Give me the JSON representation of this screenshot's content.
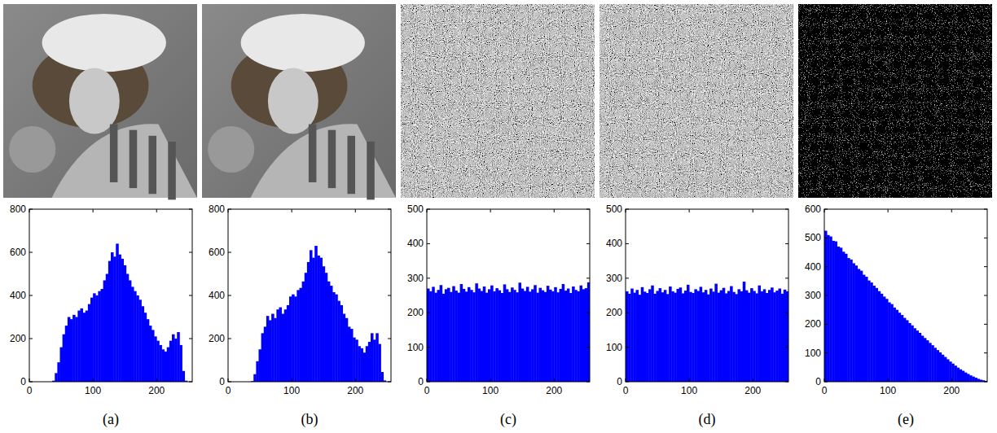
{
  "chart_data": [
    {
      "type": "histogram",
      "title": "(a)",
      "color": "#0000ff",
      "grid": false,
      "bins": [
        0,
        4,
        8,
        12,
        16,
        20,
        24,
        28,
        32,
        36,
        40,
        44,
        48,
        52,
        56,
        60,
        64,
        68,
        72,
        76,
        80,
        84,
        88,
        92,
        96,
        100,
        104,
        108,
        112,
        116,
        120,
        124,
        128,
        132,
        136,
        140,
        144,
        148,
        152,
        156,
        160,
        164,
        168,
        172,
        176,
        180,
        184,
        188,
        192,
        196,
        200,
        204,
        208,
        212,
        216,
        220,
        224,
        228,
        232,
        236,
        240,
        244,
        248,
        252,
        256
      ],
      "values": [
        0,
        0,
        0,
        0,
        0,
        0,
        0,
        0,
        0,
        5,
        40,
        90,
        160,
        220,
        260,
        300,
        290,
        310,
        300,
        330,
        340,
        320,
        330,
        360,
        390,
        410,
        400,
        420,
        430,
        470,
        500,
        560,
        600,
        580,
        640,
        590,
        570,
        540,
        500,
        470,
        440,
        420,
        400,
        380,
        350,
        320,
        290,
        260,
        240,
        210,
        190,
        170,
        150,
        140,
        160,
        190,
        220,
        200,
        230,
        170,
        50,
        5,
        0,
        0
      ],
      "xlim": [
        0,
        256
      ],
      "xticks": [
        0,
        100,
        200
      ],
      "ylim": [
        0,
        800
      ],
      "yticks": [
        0,
        200,
        400,
        600,
        800
      ]
    },
    {
      "type": "histogram",
      "title": "(b)",
      "color": "#0000ff",
      "grid": false,
      "bins": [
        0,
        4,
        8,
        12,
        16,
        20,
        24,
        28,
        32,
        36,
        40,
        44,
        48,
        52,
        56,
        60,
        64,
        68,
        72,
        76,
        80,
        84,
        88,
        92,
        96,
        100,
        104,
        108,
        112,
        116,
        120,
        124,
        128,
        132,
        136,
        140,
        144,
        148,
        152,
        156,
        160,
        164,
        168,
        172,
        176,
        180,
        184,
        188,
        192,
        196,
        200,
        204,
        208,
        212,
        216,
        220,
        224,
        228,
        232,
        236,
        240,
        244,
        248,
        252,
        256
      ],
      "values": [
        0,
        0,
        0,
        0,
        0,
        0,
        0,
        0,
        0,
        3,
        35,
        95,
        150,
        225,
        255,
        305,
        285,
        315,
        295,
        335,
        345,
        315,
        335,
        355,
        395,
        405,
        395,
        425,
        435,
        465,
        505,
        555,
        610,
        575,
        630,
        585,
        575,
        535,
        505,
        465,
        445,
        415,
        405,
        375,
        355,
        315,
        295,
        255,
        245,
        205,
        195,
        165,
        155,
        135,
        165,
        185,
        225,
        195,
        225,
        175,
        45,
        6,
        0,
        0
      ],
      "xlim": [
        0,
        256
      ],
      "xticks": [
        0,
        100,
        200
      ],
      "ylim": [
        0,
        800
      ],
      "yticks": [
        0,
        200,
        400,
        600,
        800
      ]
    },
    {
      "type": "histogram",
      "title": "(c)",
      "color": "#0000ff",
      "grid": false,
      "bins": [
        0,
        4,
        8,
        12,
        16,
        20,
        24,
        28,
        32,
        36,
        40,
        44,
        48,
        52,
        56,
        60,
        64,
        68,
        72,
        76,
        80,
        84,
        88,
        92,
        96,
        100,
        104,
        108,
        112,
        116,
        120,
        124,
        128,
        132,
        136,
        140,
        144,
        148,
        152,
        156,
        160,
        164,
        168,
        172,
        176,
        180,
        184,
        188,
        192,
        196,
        200,
        204,
        208,
        212,
        216,
        220,
        224,
        228,
        232,
        236,
        240,
        244,
        248,
        252,
        256
      ],
      "values": [
        270,
        262,
        275,
        258,
        266,
        280,
        255,
        268,
        272,
        260,
        277,
        264,
        258,
        283,
        269,
        261,
        274,
        266,
        259,
        285,
        270,
        263,
        276,
        258,
        268,
        279,
        262,
        271,
        265,
        257,
        282,
        268,
        260,
        273,
        266,
        259,
        287,
        270,
        263,
        275,
        261,
        268,
        280,
        258,
        272,
        265,
        260,
        278,
        267,
        262,
        274,
        259,
        269,
        283,
        264,
        270,
        257,
        276,
        266,
        262,
        279,
        268,
        271,
        288
      ],
      "xlim": [
        0,
        256
      ],
      "xticks": [
        0,
        100,
        200
      ],
      "ylim": [
        0,
        500
      ],
      "yticks": [
        0,
        100,
        200,
        300,
        400,
        500
      ]
    },
    {
      "type": "histogram",
      "title": "(d)",
      "color": "#0000ff",
      "grid": false,
      "bins": [
        0,
        4,
        8,
        12,
        16,
        20,
        24,
        28,
        32,
        36,
        40,
        44,
        48,
        52,
        56,
        60,
        64,
        68,
        72,
        76,
        80,
        84,
        88,
        92,
        96,
        100,
        104,
        108,
        112,
        116,
        120,
        124,
        128,
        132,
        136,
        140,
        144,
        148,
        152,
        156,
        160,
        164,
        168,
        172,
        176,
        180,
        184,
        188,
        192,
        196,
        200,
        204,
        208,
        212,
        216,
        220,
        224,
        228,
        232,
        236,
        240,
        244,
        248,
        252,
        256
      ],
      "values": [
        262,
        255,
        270,
        258,
        266,
        252,
        274,
        261,
        257,
        268,
        279,
        255,
        263,
        271,
        259,
        266,
        254,
        276,
        262,
        258,
        269,
        273,
        256,
        264,
        281,
        260,
        257,
        268,
        263,
        275,
        259,
        266,
        253,
        270,
        261,
        284,
        258,
        265,
        272,
        256,
        263,
        277,
        260,
        254,
        268,
        262,
        290,
        265,
        258,
        271,
        263,
        256,
        279,
        262,
        268,
        257,
        266,
        273,
        259,
        264,
        270,
        255,
        267,
        262
      ],
      "xlim": [
        0,
        256
      ],
      "xticks": [
        0,
        100,
        200
      ],
      "ylim": [
        0,
        500
      ],
      "yticks": [
        0,
        100,
        200,
        300,
        400,
        500
      ]
    },
    {
      "type": "histogram",
      "title": "(e)",
      "color": "#0000ff",
      "grid": false,
      "bins": [
        0,
        4,
        8,
        12,
        16,
        20,
        24,
        28,
        32,
        36,
        40,
        44,
        48,
        52,
        56,
        60,
        64,
        68,
        72,
        76,
        80,
        84,
        88,
        92,
        96,
        100,
        104,
        108,
        112,
        116,
        120,
        124,
        128,
        132,
        136,
        140,
        144,
        148,
        152,
        156,
        160,
        164,
        168,
        172,
        176,
        180,
        184,
        188,
        192,
        196,
        200,
        204,
        208,
        212,
        216,
        220,
        224,
        228,
        232,
        236,
        240,
        244,
        248,
        252,
        256
      ],
      "values": [
        525,
        510,
        505,
        490,
        488,
        470,
        466,
        452,
        445,
        430,
        425,
        412,
        404,
        392,
        386,
        372,
        365,
        352,
        345,
        334,
        326,
        315,
        306,
        296,
        288,
        276,
        270,
        258,
        250,
        240,
        232,
        222,
        214,
        204,
        196,
        186,
        178,
        170,
        160,
        152,
        144,
        135,
        127,
        118,
        110,
        102,
        94,
        86,
        78,
        70,
        63,
        56,
        49,
        43,
        38,
        32,
        27,
        22,
        18,
        14,
        10,
        7,
        5,
        3
      ],
      "xlim": [
        0,
        256
      ],
      "xticks": [
        0,
        100,
        200
      ],
      "ylim": [
        0,
        600
      ],
      "yticks": [
        0,
        100,
        200,
        300,
        400,
        500,
        600
      ]
    }
  ]
}
